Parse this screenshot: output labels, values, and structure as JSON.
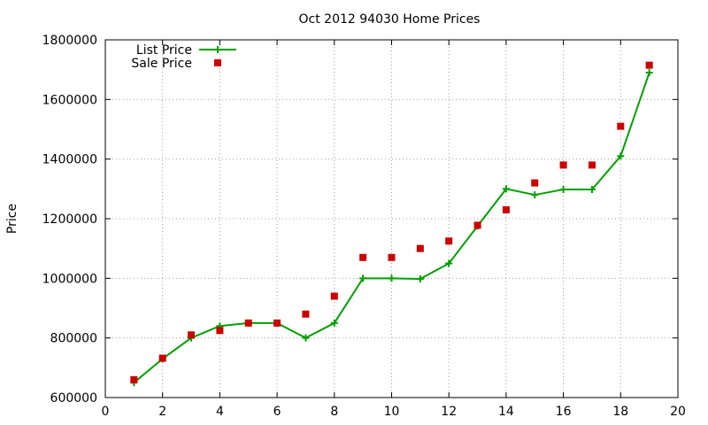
{
  "colors": {
    "list_price": "#00a000",
    "sale_price": "#cc0000",
    "grid": "#a0a0a0",
    "axis": "#000000"
  },
  "chart_data": {
    "type": "line",
    "title": "Oct 2012 94030 Home Prices",
    "xlabel": "",
    "ylabel": "Price",
    "xlim": [
      0,
      20
    ],
    "ylim": [
      600000,
      1800000
    ],
    "x_ticks": [
      0,
      2,
      4,
      6,
      8,
      10,
      12,
      14,
      16,
      18,
      20
    ],
    "y_ticks": [
      600000,
      800000,
      1000000,
      1200000,
      1400000,
      1600000,
      1800000
    ],
    "x_tick_labels": [
      "0",
      "2",
      "4",
      "6",
      "8",
      "10",
      "12",
      "14",
      "16",
      "18",
      "20"
    ],
    "y_tick_labels": [
      "600000",
      "800000",
      "1000000",
      "1200000",
      "1400000",
      "1600000",
      "1800000"
    ],
    "grid": true,
    "legend_position": "top-left",
    "series": [
      {
        "name": "List Price",
        "style": "line with plus markers",
        "x": [
          1,
          2,
          3,
          4,
          5,
          6,
          7,
          8,
          9,
          10,
          11,
          12,
          13,
          14,
          15,
          16,
          17,
          18,
          19
        ],
        "y": [
          650000,
          730000,
          800000,
          840000,
          850000,
          850000,
          800000,
          850000,
          1000000,
          1000000,
          998000,
          1050000,
          1175000,
          1300000,
          1280000,
          1298000,
          1298000,
          1410000,
          1690000
        ]
      },
      {
        "name": "Sale Price",
        "style": "square markers",
        "x": [
          1,
          2,
          3,
          4,
          5,
          6,
          7,
          8,
          9,
          10,
          11,
          12,
          13,
          14,
          15,
          16,
          17,
          18,
          19
        ],
        "y": [
          660000,
          732000,
          810000,
          825000,
          850000,
          850000,
          880000,
          940000,
          1070000,
          1070000,
          1100000,
          1125000,
          1178000,
          1230000,
          1320000,
          1380000,
          1380000,
          1510000,
          1715000
        ]
      }
    ]
  }
}
